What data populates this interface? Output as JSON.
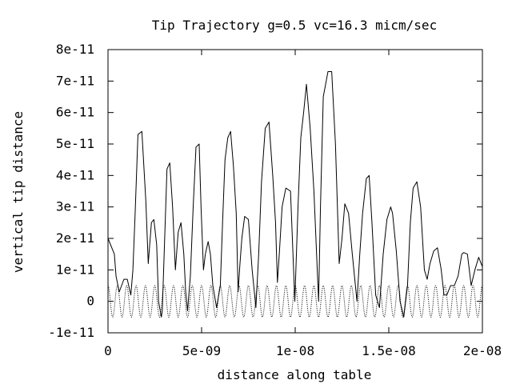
{
  "chart_data": {
    "type": "line",
    "title": "Tip Trajectory g=0.5 vc=16.3 micm/sec",
    "xlabel": "distance along table",
    "ylabel": "vertical tip distance",
    "xlim": [
      0,
      2e-08
    ],
    "ylim": [
      -1e-11,
      8e-11
    ],
    "x_ticks": [
      {
        "value": 0,
        "label": "0"
      },
      {
        "value": 5e-09,
        "label": "5e-09"
      },
      {
        "value": 1e-08,
        "label": "1e-08"
      },
      {
        "value": 1.5e-08,
        "label": "1.5e-08"
      },
      {
        "value": 2e-08,
        "label": "2e-08"
      }
    ],
    "y_ticks": [
      {
        "value": -1e-11,
        "label": "-1e-11"
      },
      {
        "value": 0,
        "label": "0"
      },
      {
        "value": 1e-11,
        "label": "1e-11"
      },
      {
        "value": 2e-11,
        "label": "2e-11"
      },
      {
        "value": 3e-11,
        "label": "3e-11"
      },
      {
        "value": 4e-11,
        "label": "4e-11"
      },
      {
        "value": 5e-11,
        "label": "5e-11"
      },
      {
        "value": 6e-11,
        "label": "6e-11"
      },
      {
        "value": 7e-11,
        "label": "7e-11"
      },
      {
        "value": 8e-11,
        "label": "8e-11"
      }
    ],
    "grid": false,
    "series": [
      {
        "style": "solid",
        "x": [
          0,
          3.4e-10,
          4.3e-10,
          6e-10,
          8.5e-10,
          1.03e-09,
          1.22e-09,
          1.33e-09,
          1.45e-09,
          1.6e-09,
          1.81e-09,
          2.02e-09,
          2.15e-09,
          2.32e-09,
          2.45e-09,
          2.6e-09,
          2.7e-09,
          2.85e-09,
          2.9e-09,
          3e-09,
          3.15e-09,
          3.3e-09,
          3.45e-09,
          3.6e-09,
          3.75e-09,
          3.9e-09,
          4.05e-09,
          4.15e-09,
          4.25e-09,
          4.4e-09,
          4.55e-09,
          4.7e-09,
          4.87e-09,
          4.97e-09,
          5.1e-09,
          5.2e-09,
          5.35e-09,
          5.47e-09,
          5.6e-09,
          5.8e-09,
          6e-09,
          6.12e-09,
          6.25e-09,
          6.4e-09,
          6.55e-09,
          6.7e-09,
          6.85e-09,
          6.95e-09,
          7.05e-09,
          7.15e-09,
          7.3e-09,
          7.5e-09,
          7.7e-09,
          7.9e-09,
          8.05e-09,
          8.2e-09,
          8.4e-09,
          8.6e-09,
          8.8e-09,
          8.95e-09,
          9.05e-09,
          9.15e-09,
          9.3e-09,
          9.5e-09,
          9.75e-09,
          9.98e-09,
          1.015e-08,
          1.03e-08,
          1.045e-08,
          1.06e-08,
          1.08e-08,
          1.1e-08,
          1.125e-08,
          1.135e-08,
          1.15e-08,
          1.175e-08,
          1.195e-08,
          1.215e-08,
          1.235e-08,
          1.25e-08,
          1.265e-08,
          1.285e-08,
          1.305e-08,
          1.33e-08,
          1.345e-08,
          1.36e-08,
          1.38e-08,
          1.395e-08,
          1.41e-08,
          1.43e-08,
          1.45e-08,
          1.47e-08,
          1.49e-08,
          1.51e-08,
          1.52e-08,
          1.54e-08,
          1.56e-08,
          1.58e-08,
          1.6e-08,
          1.615e-08,
          1.63e-08,
          1.65e-08,
          1.67e-08,
          1.69e-08,
          1.705e-08,
          1.72e-08,
          1.74e-08,
          1.76e-08,
          1.78e-08,
          1.795e-08,
          1.81e-08,
          1.83e-08,
          1.85e-08,
          1.87e-08,
          1.89e-08,
          1.9e-08,
          1.92e-08,
          1.94e-08,
          1.96e-08,
          1.98e-08,
          2e-08
        ],
        "y": [
          2e-11,
          1.5e-11,
          8e-12,
          3e-12,
          7e-12,
          7e-12,
          2e-12,
          1e-11,
          2.8e-11,
          5.3e-11,
          5.4e-11,
          3.2e-11,
          1.2e-11,
          2.5e-11,
          2.6e-11,
          1.8e-11,
          0.0,
          -5e-12,
          -3e-12,
          1.5e-11,
          4.2e-11,
          4.4e-11,
          3e-11,
          1e-11,
          2.2e-11,
          2.5e-11,
          1.5e-11,
          3e-12,
          -3e-12,
          8e-12,
          3e-11,
          4.9e-11,
          5e-11,
          3e-11,
          1e-11,
          1.5e-11,
          1.9e-11,
          1.5e-11,
          5e-12,
          -2e-12,
          5e-12,
          2.5e-11,
          4.5e-11,
          5.2e-11,
          5.4e-11,
          4.3e-11,
          2.8e-11,
          3e-12,
          1.2e-11,
          2e-11,
          2.7e-11,
          2.6e-11,
          1e-11,
          -2e-12,
          1.5e-11,
          3.8e-11,
          5.5e-11,
          5.7e-11,
          4e-11,
          2.5e-11,
          6e-12,
          1.5e-11,
          3e-11,
          3.6e-11,
          3.5e-11,
          0.0,
          3e-11,
          5.2e-11,
          6e-11,
          6.9e-11,
          5.5e-11,
          3.5e-11,
          0.0,
          3e-11,
          6.5e-11,
          7.3e-11,
          7.3e-11,
          5e-11,
          1.2e-11,
          2e-11,
          3.1e-11,
          2.8e-11,
          1.5e-11,
          0.0,
          1.5e-11,
          2.8e-11,
          3.9e-11,
          4e-11,
          2.5e-11,
          2e-12,
          -2e-12,
          1.5e-11,
          2.6e-11,
          3e-11,
          2.8e-11,
          1.6e-11,
          0.0,
          -5e-12,
          5e-12,
          2.5e-11,
          3.6e-11,
          3.8e-11,
          3e-11,
          1e-11,
          7e-12,
          1.2e-11,
          1.6e-11,
          1.7e-11,
          1e-11,
          2e-12,
          2e-12,
          5e-12,
          5e-12,
          8e-12,
          1.5e-11,
          1.55e-11,
          1.5e-11,
          5e-12,
          1e-11,
          1.4e-11,
          1.1e-11
        ]
      },
      {
        "style": "dotted",
        "function": "sinusoid",
        "amplitude": 5e-12,
        "period": 5e-10,
        "x_start": 0,
        "x_end": 2e-08
      }
    ]
  }
}
